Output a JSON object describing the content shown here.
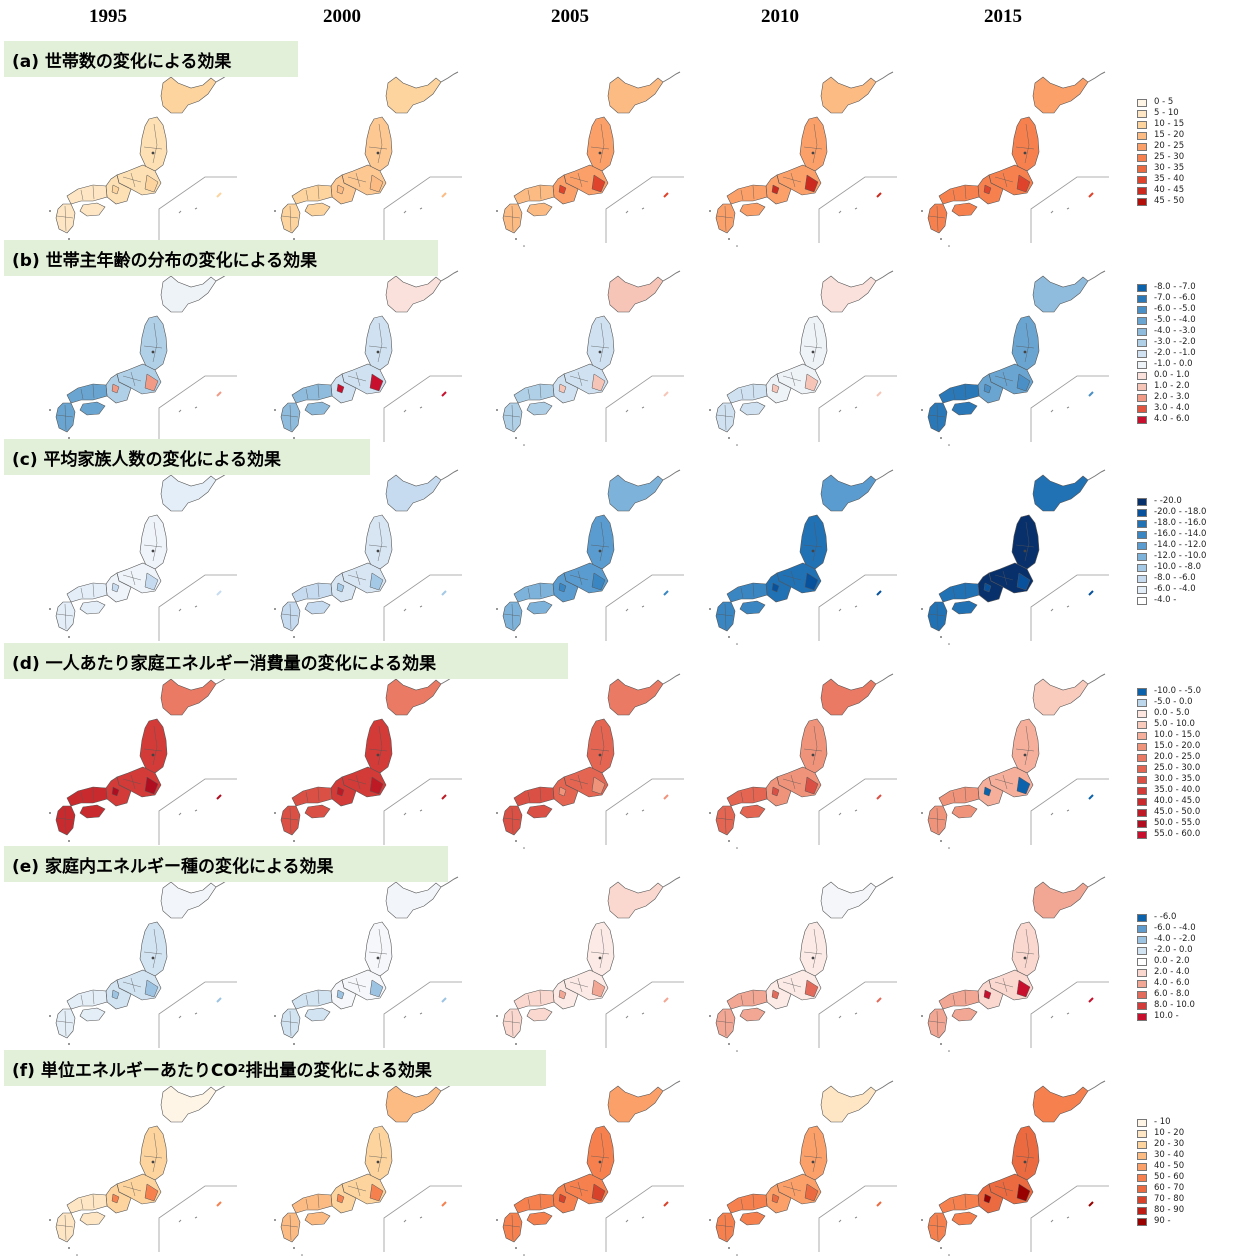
{
  "years": [
    "1995",
    "2000",
    "2005",
    "2010",
    "2015"
  ],
  "panels": [
    {
      "id": "a",
      "title": "(a) 世帯数の変化による効果",
      "legend": [
        {
          "label": "0 - 5",
          "color": "#fff5e6"
        },
        {
          "label": "5 - 10",
          "color": "#fee6c4"
        },
        {
          "label": "10 - 15",
          "color": "#fdd49e"
        },
        {
          "label": "15 - 20",
          "color": "#fdbb84"
        },
        {
          "label": "20 - 25",
          "color": "#fca06a"
        },
        {
          "label": "25 - 30",
          "color": "#f6814f"
        },
        {
          "label": "30 - 35",
          "color": "#ec6a3f"
        },
        {
          "label": "35 - 40",
          "color": "#e0432b"
        },
        {
          "label": "40 - 45",
          "color": "#cc2a1e"
        },
        {
          "label": "45 - 50",
          "color": "#b30f0a"
        }
      ],
      "map_colors": [
        {
          "north": "#fdd49e",
          "main": "#fde0b3",
          "west": "#fee6c4",
          "accent": "#fdd49e"
        },
        {
          "north": "#fdd49e",
          "main": "#fdc892",
          "west": "#fdd49e",
          "accent": "#fdbb84"
        },
        {
          "north": "#fdbb84",
          "main": "#fca06a",
          "west": "#fdbb84",
          "accent": "#e0432b"
        },
        {
          "north": "#fdbb84",
          "main": "#fca06a",
          "west": "#fca06a",
          "accent": "#cc2a1e"
        },
        {
          "north": "#fca06a",
          "main": "#f6814f",
          "west": "#f6814f",
          "accent": "#e0432b"
        }
      ]
    },
    {
      "id": "b",
      "title": "(b) 世帯主年齢の分布の変化による効果",
      "legend": [
        {
          "label": "-8.0 - -7.0",
          "color": "#0c63ac"
        },
        {
          "label": "-7.0 - -6.0",
          "color": "#2a78b8"
        },
        {
          "label": "-6.0 - -5.0",
          "color": "#4a8fc5"
        },
        {
          "label": "-5.0 - -4.0",
          "color": "#6aa5d1"
        },
        {
          "label": "-4.0 - -3.0",
          "color": "#8fbcdc"
        },
        {
          "label": "-3.0 - -2.0",
          "color": "#b0d0e8"
        },
        {
          "label": "-2.0 - -1.0",
          "color": "#d0e2f1"
        },
        {
          "label": "-1.0 - 0.0",
          "color": "#eef3f8"
        },
        {
          "label": "0.0 - 1.0",
          "color": "#fae1dc"
        },
        {
          "label": "1.0 - 2.0",
          "color": "#f7c5b8"
        },
        {
          "label": "2.0 - 3.0",
          "color": "#f19b86"
        },
        {
          "label": "3.0 - 4.0",
          "color": "#e3543f"
        },
        {
          "label": "4.0 - 6.0",
          "color": "#c8102e"
        }
      ],
      "map_colors": [
        {
          "north": "#eef3f8",
          "main": "#b0d0e8",
          "west": "#6aa5d1",
          "accent": "#f19b86"
        },
        {
          "north": "#fae1dc",
          "main": "#d0e2f1",
          "west": "#8fbcdc",
          "accent": "#c8102e"
        },
        {
          "north": "#f7c5b8",
          "main": "#d0e2f1",
          "west": "#b0d0e8",
          "accent": "#f7c5b8"
        },
        {
          "north": "#fae1dc",
          "main": "#eef3f8",
          "west": "#d0e2f1",
          "accent": "#f7c5b8"
        },
        {
          "north": "#8fbcdc",
          "main": "#6aa5d1",
          "west": "#2a78b8",
          "accent": "#4a8fc5"
        }
      ]
    },
    {
      "id": "c",
      "title": "(c) 平均家族人数の変化による効果",
      "legend": [
        {
          "label": "- -20.0",
          "color": "#08306b"
        },
        {
          "label": "-20.0 - -18.0",
          "color": "#08519c"
        },
        {
          "label": "-18.0 - -16.0",
          "color": "#2171b5"
        },
        {
          "label": "-16.0 - -14.0",
          "color": "#3a86c2"
        },
        {
          "label": "-14.0 - -12.0",
          "color": "#5a9ccf"
        },
        {
          "label": "-12.0 - -10.0",
          "color": "#7db3da"
        },
        {
          "label": "-10.0 - -8.0",
          "color": "#a3c9e6"
        },
        {
          "label": "-8.0 - -6.0",
          "color": "#c6dbef"
        },
        {
          "label": "-6.0 - -4.0",
          "color": "#e4eef8"
        },
        {
          "label": "-4.0 -",
          "color": "#ffffff"
        }
      ],
      "map_colors": [
        {
          "north": "#e4eef8",
          "main": "#eef4fa",
          "west": "#e4eef8",
          "accent": "#c6dbef"
        },
        {
          "north": "#c6dbef",
          "main": "#d8e6f4",
          "west": "#c6dbef",
          "accent": "#a3c9e6"
        },
        {
          "north": "#7db3da",
          "main": "#5a9ccf",
          "west": "#7db3da",
          "accent": "#3a86c2"
        },
        {
          "north": "#5a9ccf",
          "main": "#2171b5",
          "west": "#3a86c2",
          "accent": "#08519c"
        },
        {
          "north": "#2171b5",
          "main": "#08306b",
          "west": "#2171b5",
          "accent": "#08519c"
        }
      ]
    },
    {
      "id": "d",
      "title": "(d) 一人あたり家庭エネルギー消費量の変化による効果",
      "legend": [
        {
          "label": "-10.0 - -5.0",
          "color": "#0c63ac"
        },
        {
          "label": "-5.0 - 0.0",
          "color": "#bcd7ec"
        },
        {
          "label": "0.0 - 5.0",
          "color": "#fde6df"
        },
        {
          "label": "5.0 - 10.0",
          "color": "#f9cbbd"
        },
        {
          "label": "10.0 - 15.0",
          "color": "#f5af9b"
        },
        {
          "label": "15.0 - 20.0",
          "color": "#f0937b"
        },
        {
          "label": "20.0 - 25.0",
          "color": "#ea7a64"
        },
        {
          "label": "25.0 - 30.0",
          "color": "#e36552"
        },
        {
          "label": "30.0 - 35.0",
          "color": "#da5044"
        },
        {
          "label": "35.0 - 40.0",
          "color": "#d23b38"
        },
        {
          "label": "40.0 - 45.0",
          "color": "#c92a2e"
        },
        {
          "label": "45.0 - 50.0",
          "color": "#bd1a26"
        },
        {
          "label": "50.0 - 55.0",
          "color": "#b00d20"
        },
        {
          "label": "55.0 - 60.0",
          "color": "#c8102e"
        }
      ],
      "map_colors": [
        {
          "north": "#ea7a64",
          "main": "#d23b38",
          "west": "#c92a2e",
          "accent": "#b00d20"
        },
        {
          "north": "#ea7a64",
          "main": "#d23b38",
          "west": "#da5044",
          "accent": "#bd1a26"
        },
        {
          "north": "#ea7a64",
          "main": "#e36552",
          "west": "#da5044",
          "accent": "#f0937b"
        },
        {
          "north": "#ea7a64",
          "main": "#f0937b",
          "west": "#e36552",
          "accent": "#da5044"
        },
        {
          "north": "#f9cbbd",
          "main": "#f5af9b",
          "west": "#f0937b",
          "accent": "#0c63ac"
        }
      ]
    },
    {
      "id": "e",
      "title": "(e) 家庭内エネルギー種の変化による効果",
      "legend": [
        {
          "label": "- -6.0",
          "color": "#0c63ac"
        },
        {
          "label": "-6.0 - -4.0",
          "color": "#5f9bcc"
        },
        {
          "label": "-4.0 - -2.0",
          "color": "#9dc3e3"
        },
        {
          "label": "-2.0 - 0.0",
          "color": "#d2e4f2"
        },
        {
          "label": "0.0 - 2.0",
          "color": "#ffffff"
        },
        {
          "label": "2.0 - 4.0",
          "color": "#fad8cf"
        },
        {
          "label": "4.0 - 6.0",
          "color": "#f2a694"
        },
        {
          "label": "6.0 - 8.0",
          "color": "#e36b5b"
        },
        {
          "label": "8.0 - 10.0",
          "color": "#d33a3a"
        },
        {
          "label": "10.0 -",
          "color": "#c8102e"
        }
      ],
      "map_colors": [
        {
          "north": "#f2f5f9",
          "main": "#d2e4f2",
          "west": "#e4eef7",
          "accent": "#9dc3e3"
        },
        {
          "north": "#f2f5f9",
          "main": "#f5f7fa",
          "west": "#d2e4f2",
          "accent": "#9dc3e3"
        },
        {
          "north": "#fad8cf",
          "main": "#fbeae5",
          "west": "#fad8cf",
          "accent": "#f2a694"
        },
        {
          "north": "#f4f6f9",
          "main": "#fbeae5",
          "west": "#f2a694",
          "accent": "#e36b5b"
        },
        {
          "north": "#f2a694",
          "main": "#fad8cf",
          "west": "#f2a694",
          "accent": "#c8102e"
        }
      ]
    },
    {
      "id": "f",
      "title_prefix": "(f) 単位エネルギーあたりCO",
      "title_sub": "2",
      "title_suffix": "排出量の変化による効果",
      "legend": [
        {
          "label": "- 10",
          "color": "#fff5e6"
        },
        {
          "label": "10 - 20",
          "color": "#fee6c4"
        },
        {
          "label": "20 - 30",
          "color": "#fdd49e"
        },
        {
          "label": "30 - 40",
          "color": "#fdbb84"
        },
        {
          "label": "40 - 50",
          "color": "#fca06a"
        },
        {
          "label": "50 - 60",
          "color": "#f6814f"
        },
        {
          "label": "60 - 70",
          "color": "#ec6a3f"
        },
        {
          "label": "70 - 80",
          "color": "#d8412a"
        },
        {
          "label": "80 - 90",
          "color": "#bd1d14"
        },
        {
          "label": "90 -",
          "color": "#990000"
        }
      ],
      "map_colors": [
        {
          "north": "#fff5e6",
          "main": "#fdd49e",
          "west": "#fee6c4",
          "accent": "#f6814f"
        },
        {
          "north": "#fdbb84",
          "main": "#fdd49e",
          "west": "#fdbb84",
          "accent": "#f6814f"
        },
        {
          "north": "#fca06a",
          "main": "#f6814f",
          "west": "#f6814f",
          "accent": "#d8412a"
        },
        {
          "north": "#fee6c4",
          "main": "#fca06a",
          "west": "#f6814f",
          "accent": "#ec6a3f"
        },
        {
          "north": "#f6814f",
          "main": "#ec6a3f",
          "west": "#f6814f",
          "accent": "#990000"
        }
      ]
    }
  ]
}
